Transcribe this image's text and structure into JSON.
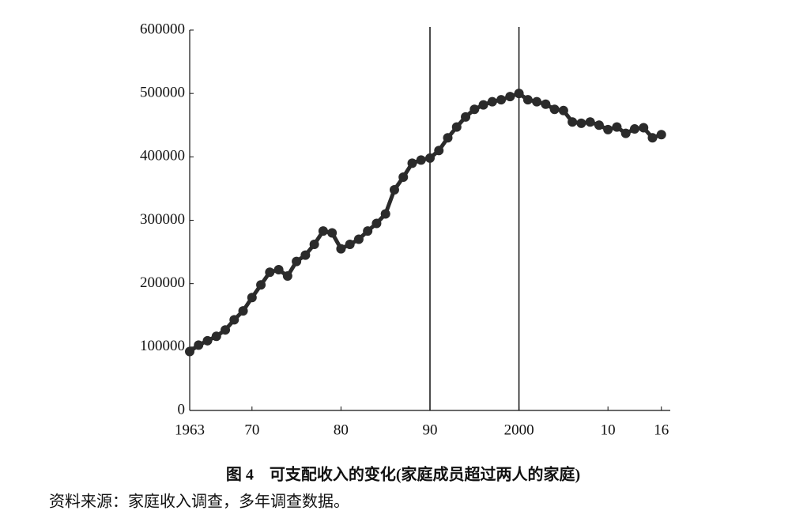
{
  "chart_data": {
    "type": "line",
    "caption": "图 4　可支配收入的变化(家庭成员超过两人的家庭)",
    "source": "资料来源：家庭收入调查，多年调查数据。",
    "x": [
      1963,
      1964,
      1965,
      1966,
      1967,
      1968,
      1969,
      1970,
      1971,
      1972,
      1973,
      1974,
      1975,
      1976,
      1977,
      1978,
      1979,
      1980,
      1981,
      1982,
      1983,
      1984,
      1985,
      1986,
      1987,
      1988,
      1989,
      1990,
      1991,
      1992,
      1993,
      1994,
      1995,
      1996,
      1997,
      1998,
      1999,
      2000,
      2001,
      2002,
      2003,
      2004,
      2005,
      2006,
      2007,
      2008,
      2009,
      2010,
      2011,
      2012,
      2013,
      2014,
      2015,
      2016
    ],
    "values": [
      93000,
      103000,
      110000,
      117000,
      127000,
      143000,
      157000,
      178000,
      198000,
      218000,
      222000,
      212000,
      235000,
      245000,
      262000,
      283000,
      280000,
      255000,
      262000,
      270000,
      283000,
      295000,
      310000,
      348000,
      368000,
      390000,
      395000,
      398000,
      410000,
      430000,
      447000,
      463000,
      475000,
      482000,
      487000,
      490000,
      495000,
      500000,
      490000,
      487000,
      483000,
      475000,
      473000,
      455000,
      453000,
      455000,
      450000,
      443000,
      447000,
      437000,
      444000,
      446000,
      430000,
      435000
    ],
    "color": "#2b2b2b",
    "xlim": [
      1963,
      2017
    ],
    "xticks": [
      {
        "value": 1963,
        "label": "1963"
      },
      {
        "value": 1970,
        "label": "70"
      },
      {
        "value": 1980,
        "label": "80"
      },
      {
        "value": 1990,
        "label": "90"
      },
      {
        "value": 2000,
        "label": "2000"
      },
      {
        "value": 2010,
        "label": "10"
      },
      {
        "value": 2016,
        "label": "16"
      }
    ],
    "ylim": [
      0,
      600000
    ],
    "yticks": [
      0,
      100000,
      200000,
      300000,
      400000,
      500000,
      600000
    ],
    "vlines": [
      1990,
      2000
    ]
  }
}
